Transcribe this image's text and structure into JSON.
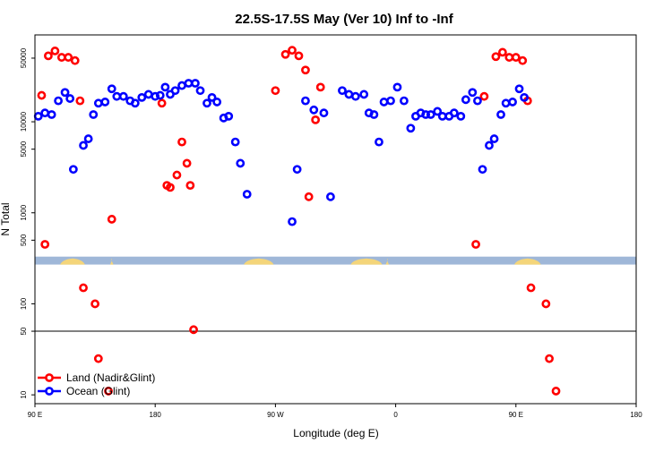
{
  "chart_data": {
    "type": "scatter",
    "title": "22.5S-17.5S May (Ver 10)   Inf to -Inf",
    "xlabel": "Longitude (deg E)",
    "ylabel": "N Total",
    "xlim": [
      90,
      450
    ],
    "yscale": "log",
    "ylim": [
      8,
      90000
    ],
    "x_ticks": [
      {
        "value": 90,
        "label": "90 E"
      },
      {
        "value": 162,
        "label": "180"
      },
      {
        "value": 234,
        "label": "90 W"
      },
      {
        "value": 306,
        "label": "0"
      },
      {
        "value": 378,
        "label": "90 E"
      },
      {
        "value": 450,
        "label": "180"
      }
    ],
    "y_ticks": [
      {
        "value": 10,
        "label": "10"
      },
      {
        "value": 50,
        "label": "50"
      },
      {
        "value": 100,
        "label": "100"
      },
      {
        "value": 500,
        "label": "500"
      },
      {
        "value": 1000,
        "label": "1000"
      },
      {
        "value": 5000,
        "label": "5000"
      },
      {
        "value": 10000,
        "label": "10000"
      },
      {
        "value": 50000,
        "label": "50000"
      }
    ],
    "reference_line": {
      "y": 50
    },
    "map_strip": {
      "y_top": 330,
      "y_bottom": 270
    },
    "series": [
      {
        "name": "Land (Nadir&Glint)",
        "color": "#ff0000",
        "points": [
          [
            94,
            19500
          ],
          [
            96,
            450
          ],
          [
            98,
            53000
          ],
          [
            102,
            60000
          ],
          [
            106,
            51000
          ],
          [
            110,
            51000
          ],
          [
            114,
            47000
          ],
          [
            117,
            17000
          ],
          [
            119,
            150
          ],
          [
            126,
            100
          ],
          [
            128,
            25
          ],
          [
            134,
            11
          ],
          [
            136,
            850
          ],
          [
            166,
            16000
          ],
          [
            169,
            2000
          ],
          [
            171,
            1900
          ],
          [
            175,
            2600
          ],
          [
            178,
            6000
          ],
          [
            181,
            3500
          ],
          [
            183,
            2000
          ],
          [
            185,
            52
          ],
          [
            234,
            22000
          ],
          [
            240,
            55000
          ],
          [
            244,
            61000
          ],
          [
            248,
            53000
          ],
          [
            252,
            37000
          ],
          [
            254,
            1500
          ],
          [
            258,
            10500
          ],
          [
            261,
            24000
          ],
          [
            354,
            450
          ],
          [
            359,
            19000
          ],
          [
            366,
            52000
          ],
          [
            370,
            58000
          ],
          [
            374,
            51000
          ],
          [
            378,
            51000
          ],
          [
            382,
            47000
          ],
          [
            385,
            17000
          ],
          [
            387,
            150
          ],
          [
            396,
            100
          ],
          [
            398,
            25
          ],
          [
            402,
            11
          ]
        ]
      },
      {
        "name": "Ocean (Glint)",
        "color": "#0000ff",
        "points": [
          [
            92,
            11500
          ],
          [
            96,
            12500
          ],
          [
            100,
            12000
          ],
          [
            104,
            17000
          ],
          [
            108,
            21000
          ],
          [
            111,
            18000
          ],
          [
            113,
            3000
          ],
          [
            119,
            5500
          ],
          [
            122,
            6500
          ],
          [
            125,
            12000
          ],
          [
            128,
            16000
          ],
          [
            132,
            16500
          ],
          [
            136,
            23000
          ],
          [
            139,
            19000
          ],
          [
            143,
            19000
          ],
          [
            147,
            17000
          ],
          [
            150,
            16000
          ],
          [
            154,
            18500
          ],
          [
            158,
            20000
          ],
          [
            162,
            19000
          ],
          [
            165,
            19500
          ],
          [
            168,
            24000
          ],
          [
            171,
            20000
          ],
          [
            174,
            22000
          ],
          [
            178,
            25000
          ],
          [
            182,
            26500
          ],
          [
            186,
            26500
          ],
          [
            189,
            22000
          ],
          [
            193,
            16000
          ],
          [
            196,
            18500
          ],
          [
            199,
            16500
          ],
          [
            203,
            11000
          ],
          [
            206,
            11500
          ],
          [
            210,
            6000
          ],
          [
            213,
            3500
          ],
          [
            217,
            1600
          ],
          [
            244,
            800
          ],
          [
            247,
            3000
          ],
          [
            252,
            17000
          ],
          [
            257,
            13500
          ],
          [
            263,
            12500
          ],
          [
            267,
            1500
          ],
          [
            274,
            22000
          ],
          [
            278,
            20000
          ],
          [
            282,
            19000
          ],
          [
            287,
            20000
          ],
          [
            290,
            12500
          ],
          [
            293,
            12000
          ],
          [
            296,
            6000
          ],
          [
            299,
            16500
          ],
          [
            303,
            17000
          ],
          [
            307,
            24000
          ],
          [
            311,
            17000
          ],
          [
            315,
            8500
          ],
          [
            318,
            11500
          ],
          [
            321,
            12500
          ],
          [
            324,
            12000
          ],
          [
            327,
            12000
          ],
          [
            331,
            13000
          ],
          [
            334,
            11500
          ],
          [
            338,
            11500
          ],
          [
            341,
            12500
          ],
          [
            345,
            11500
          ],
          [
            348,
            17500
          ],
          [
            352,
            21000
          ],
          [
            355,
            17000
          ],
          [
            358,
            3000
          ],
          [
            362,
            5500
          ],
          [
            365,
            6500
          ],
          [
            369,
            12000
          ],
          [
            372,
            16000
          ],
          [
            376,
            16500
          ],
          [
            380,
            23000
          ],
          [
            383,
            18500
          ]
        ]
      }
    ],
    "legend": {
      "position": "bottom-left",
      "entries": [
        {
          "label": "Land (Nadir&Glint)",
          "color": "#ff0000"
        },
        {
          "label": "Ocean (Glint)",
          "color": "#0000ff"
        }
      ]
    }
  }
}
